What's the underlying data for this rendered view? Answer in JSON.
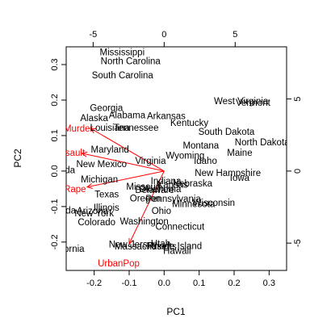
{
  "chart_data": {
    "type": "scatter",
    "subtype": "biplot",
    "xlabel": "PC1",
    "ylabel": "PC2",
    "xlim": [
      -0.28,
      0.35
    ],
    "ylim": [
      -0.28,
      0.35
    ],
    "xticks": [
      -0.2,
      -0.1,
      0.0,
      0.1,
      0.2,
      0.3
    ],
    "xtick_labels": [
      "-0.2",
      "-0.1",
      "0.0",
      "0.1",
      "0.2",
      "0.3"
    ],
    "yticks": [
      -0.2,
      -0.1,
      0.0,
      0.1,
      0.2,
      0.3
    ],
    "ytick_labels": [
      "-0.2",
      "-0.1",
      "0.0",
      "0.1",
      "0.2",
      "0.3"
    ],
    "top_ticks": [
      -5,
      0,
      5
    ],
    "top_tick_labels": [
      "-5",
      "0",
      "5"
    ],
    "right_ticks": [
      -5,
      0,
      5
    ],
    "right_tick_labels": [
      "-5",
      "0",
      "5"
    ],
    "secondary_scale": 0.0406,
    "grid": false,
    "colors": {
      "points": "#000000",
      "vectors": "#ff0000"
    },
    "points": [
      {
        "label": "Mississippi",
        "x": -0.12,
        "y": 0.335
      },
      {
        "label": "North Carolina",
        "x": -0.096,
        "y": 0.31
      },
      {
        "label": "South Carolina",
        "x": -0.119,
        "y": 0.27
      },
      {
        "label": "West Virginia",
        "x": 0.22,
        "y": 0.198
      },
      {
        "label": "Vermont",
        "x": 0.254,
        "y": 0.193
      },
      {
        "label": "Georgia",
        "x": -0.165,
        "y": 0.178
      },
      {
        "label": "Alabama",
        "x": -0.106,
        "y": 0.158
      },
      {
        "label": "Arkansas",
        "x": 0.006,
        "y": 0.156
      },
      {
        "label": "Alaska",
        "x": -0.2,
        "y": 0.15
      },
      {
        "label": "Kentucky",
        "x": 0.072,
        "y": 0.136
      },
      {
        "label": "Louisiana",
        "x": -0.155,
        "y": 0.123
      },
      {
        "label": "Tennessee",
        "x": -0.08,
        "y": 0.123
      },
      {
        "label": "South Dakota",
        "x": 0.178,
        "y": 0.111
      },
      {
        "label": "North Dakota",
        "x": 0.28,
        "y": 0.082
      },
      {
        "label": "Montana",
        "x": 0.105,
        "y": 0.073
      },
      {
        "label": "Maryland",
        "x": -0.155,
        "y": 0.061
      },
      {
        "label": "Maine",
        "x": 0.216,
        "y": 0.052
      },
      {
        "label": "Wyoming",
        "x": 0.06,
        "y": 0.044
      },
      {
        "label": "Idaho",
        "x": 0.118,
        "y": 0.029
      },
      {
        "label": "Virginia",
        "x": -0.039,
        "y": 0.029
      },
      {
        "label": "New Mexico",
        "x": -0.179,
        "y": 0.02
      },
      {
        "label": "Florida",
        "x": -0.295,
        "y": 0.003
      },
      {
        "label": "New Hampshire",
        "x": 0.182,
        "y": -0.005
      },
      {
        "label": "Iowa",
        "x": 0.216,
        "y": -0.018
      },
      {
        "label": "Michigan",
        "x": -0.185,
        "y": -0.023
      },
      {
        "label": "Indiana",
        "x": 0.005,
        "y": -0.028
      },
      {
        "label": "Nebraska",
        "x": 0.081,
        "y": -0.034
      },
      {
        "label": "Kansas",
        "x": 0.024,
        "y": -0.038
      },
      {
        "label": "Missouri",
        "x": -0.059,
        "y": -0.043
      },
      {
        "label": "Oklahoma",
        "x": -0.012,
        "y": -0.05
      },
      {
        "label": "Delaware",
        "x": -0.027,
        "y": -0.053
      },
      {
        "label": "Texas",
        "x": -0.164,
        "y": -0.065
      },
      {
        "label": "Oregon",
        "x": -0.054,
        "y": -0.077
      },
      {
        "label": "Pennsylvania",
        "x": 0.026,
        "y": -0.078
      },
      {
        "label": "Wisconsin",
        "x": 0.142,
        "y": -0.089
      },
      {
        "label": "Minnesota",
        "x": 0.084,
        "y": -0.092
      },
      {
        "label": "Illinois",
        "x": -0.165,
        "y": -0.103
      },
      {
        "label": "Nevada",
        "x": -0.298,
        "y": -0.111
      },
      {
        "label": "Arizona",
        "x": -0.205,
        "y": -0.112
      },
      {
        "label": "New York",
        "x": -0.2,
        "y": -0.118
      },
      {
        "label": "Ohio",
        "x": -0.008,
        "y": -0.112
      },
      {
        "label": "Colorado",
        "x": -0.193,
        "y": -0.143
      },
      {
        "label": "Washington",
        "x": -0.057,
        "y": -0.141
      },
      {
        "label": "Connecticut",
        "x": 0.045,
        "y": -0.156
      },
      {
        "label": "California",
        "x": -0.284,
        "y": -0.219
      },
      {
        "label": "New Jersey",
        "x": -0.089,
        "y": -0.206
      },
      {
        "label": "Massachusetts",
        "x": -0.053,
        "y": -0.212
      },
      {
        "label": "Utah",
        "x": -0.01,
        "y": -0.204
      },
      {
        "label": "Rhode Island",
        "x": 0.03,
        "y": -0.211
      },
      {
        "label": "Hawaii",
        "x": 0.037,
        "y": -0.224
      }
    ],
    "vectors": [
      {
        "label": "Murder",
        "x": -0.21,
        "y": 0.12,
        "label_x": -0.245,
        "label_y": 0.12
      },
      {
        "label": "Assault",
        "x": -0.235,
        "y": 0.05,
        "label_x": -0.27,
        "label_y": 0.052
      },
      {
        "label": "Rape",
        "x": -0.22,
        "y": -0.045,
        "label_x": -0.255,
        "label_y": -0.05
      },
      {
        "label": "UrbanPop",
        "x": -0.1,
        "y": -0.205,
        "label_x": -0.13,
        "label_y": -0.26
      }
    ]
  }
}
